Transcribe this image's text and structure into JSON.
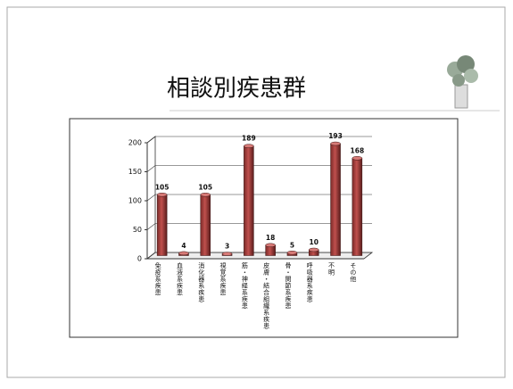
{
  "chart_data": {
    "type": "bar",
    "title": "相談別疾患群",
    "categories": [
      "免疫系疾患",
      "血液系疾患",
      "消化器系疾患",
      "視覚系疾患",
      "筋・神経系疾患",
      "皮膚・結合組織系疾患",
      "骨・関節系疾患",
      "呼吸器系疾患",
      "不明",
      "その他"
    ],
    "values": [
      105,
      4,
      105,
      3,
      189,
      18,
      5,
      10,
      193,
      168
    ],
    "color": "#c0504d",
    "ylim": [
      0,
      200
    ],
    "yticks": [
      0,
      50,
      100,
      150,
      200
    ],
    "grid": true
  }
}
